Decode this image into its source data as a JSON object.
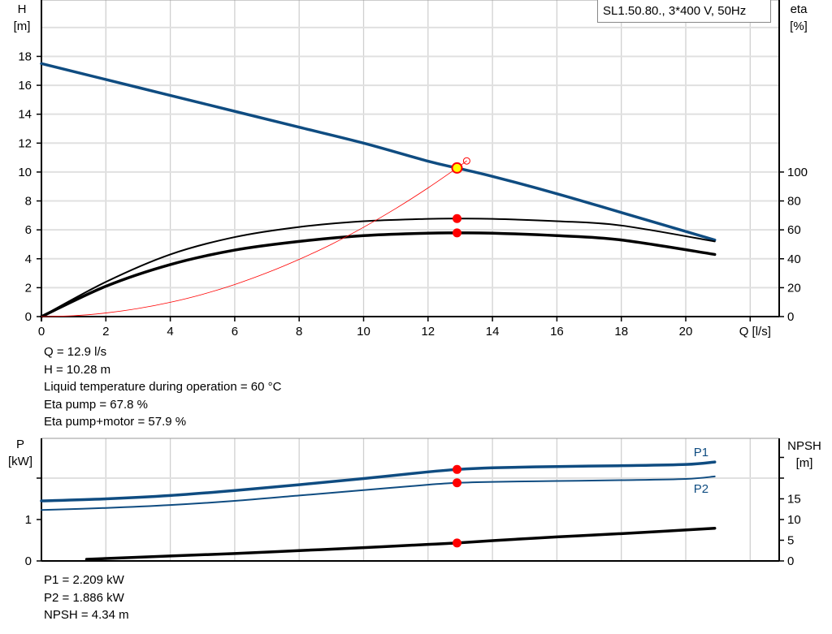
{
  "title": "SL1.50.80., 3*400 V, 50Hz",
  "colors": {
    "head": "#0f4c81",
    "power": "#0f4c81",
    "efficiency": "#000000",
    "npsh": "#000000",
    "system": "#ff0000",
    "duty_point": "#ff0000",
    "duty_point_head_fill": "#ffff00",
    "grid": "#d0d0d0"
  },
  "chart_data": [
    {
      "type": "line",
      "x_axis": {
        "label": "Q [l/s]",
        "ticks": [
          0,
          2,
          4,
          6,
          8,
          10,
          12,
          14,
          16,
          18,
          20
        ],
        "range": [
          0,
          22.9
        ]
      },
      "y_left": {
        "label_name": "H",
        "label_unit": "[m]",
        "ticks": [
          0,
          2,
          4,
          6,
          8,
          10,
          12,
          14,
          16,
          18
        ],
        "range": [
          0,
          21.9
        ]
      },
      "y_right": {
        "label_name": "eta",
        "label_unit": "[%]",
        "ticks": [
          0,
          20,
          40,
          60,
          80,
          100
        ],
        "range": [
          0,
          219
        ]
      },
      "grid": true,
      "series": [
        {
          "id": "head",
          "axis": "left",
          "x": [
            0,
            2,
            4,
            6,
            8,
            10,
            12,
            12.9,
            14,
            16,
            18,
            20.9
          ],
          "y": [
            17.5,
            16.4,
            15.3,
            14.2,
            13.1,
            12.0,
            10.75,
            10.28,
            9.7,
            8.5,
            7.2,
            5.3
          ]
        },
        {
          "id": "eta_pump",
          "axis": "right",
          "x": [
            0,
            2,
            4,
            6,
            8,
            10,
            12,
            12.9,
            14,
            16,
            18,
            20.9
          ],
          "y": [
            0,
            24,
            43,
            55,
            62,
            66,
            67.6,
            67.8,
            67.6,
            66,
            63,
            52
          ]
        },
        {
          "id": "eta_pump_motor",
          "axis": "right",
          "x": [
            0,
            2,
            4,
            6,
            8,
            10,
            12,
            12.9,
            14,
            16,
            18,
            20.9
          ],
          "y": [
            0,
            21,
            36,
            46,
            52,
            56,
            57.7,
            57.9,
            57.7,
            56,
            53,
            43
          ]
        },
        {
          "id": "system_curve",
          "axis": "left",
          "x": [
            0,
            1,
            2,
            3,
            4,
            5,
            6,
            7,
            8,
            9,
            10,
            11,
            12,
            12.9,
            13.2
          ],
          "y": [
            0,
            0.06,
            0.25,
            0.56,
            0.99,
            1.54,
            2.22,
            3.03,
            3.96,
            5.0,
            6.18,
            7.48,
            8.9,
            10.28,
            10.77
          ]
        }
      ],
      "duty_point": {
        "Q": 12.9,
        "H": 10.28,
        "eta_pump": 67.8,
        "eta_pump_motor": 57.9
      }
    },
    {
      "type": "line",
      "x_axis": {
        "ticks": [
          0,
          2,
          4,
          6,
          8,
          10,
          12,
          14,
          16,
          18,
          20,
          22
        ],
        "range": [
          0,
          22.9
        ]
      },
      "y_left": {
        "label_name": "P",
        "label_unit": "[kW]",
        "ticks": [
          0,
          1,
          2
        ],
        "tick_labels": [
          "0",
          "1",
          ""
        ],
        "range": [
          0,
          2.96
        ]
      },
      "y_right": {
        "label_name": "NPSH",
        "label_unit": "[m]",
        "ticks": [
          0,
          5,
          10,
          15,
          20,
          25
        ],
        "tick_labels": [
          "0",
          "5",
          "10",
          "15",
          "",
          ""
        ],
        "range": [
          0,
          29.6
        ]
      },
      "grid": true,
      "series": [
        {
          "id": "P1",
          "name": "P1",
          "axis": "left",
          "x": [
            0,
            2,
            4,
            6,
            8,
            10,
            12,
            12.9,
            14,
            16,
            18,
            20,
            20.9
          ],
          "y": [
            1.45,
            1.5,
            1.58,
            1.7,
            1.84,
            1.99,
            2.15,
            2.209,
            2.25,
            2.28,
            2.3,
            2.33,
            2.39
          ]
        },
        {
          "id": "P2",
          "name": "P2",
          "axis": "left",
          "x": [
            0,
            2,
            4,
            6,
            8,
            10,
            12,
            12.9,
            14,
            16,
            18,
            20,
            20.9
          ],
          "y": [
            1.23,
            1.28,
            1.35,
            1.45,
            1.58,
            1.71,
            1.84,
            1.886,
            1.91,
            1.93,
            1.95,
            1.98,
            2.04
          ]
        },
        {
          "id": "NPSH",
          "axis": "right",
          "x": [
            1.4,
            4,
            6,
            8,
            10,
            12,
            12.9,
            14,
            16,
            18,
            20.9
          ],
          "y": [
            0.4,
            1.2,
            1.8,
            2.5,
            3.2,
            4.0,
            4.34,
            4.9,
            5.8,
            6.6,
            7.9
          ]
        }
      ],
      "duty_point": {
        "Q": 12.9,
        "P1": 2.209,
        "P2": 1.886,
        "NPSH": 4.34
      }
    }
  ],
  "readout_top": [
    "Q = 12.9 l/s",
    "H = 10.28 m",
    "Liquid temperature during operation = 60 °C",
    "Eta pump = 67.8 %",
    "Eta pump+motor = 57.9 %"
  ],
  "readout_bottom": [
    "P1 = 2.209 kW",
    "P2 = 1.886 kW",
    "NPSH = 4.34 m"
  ]
}
